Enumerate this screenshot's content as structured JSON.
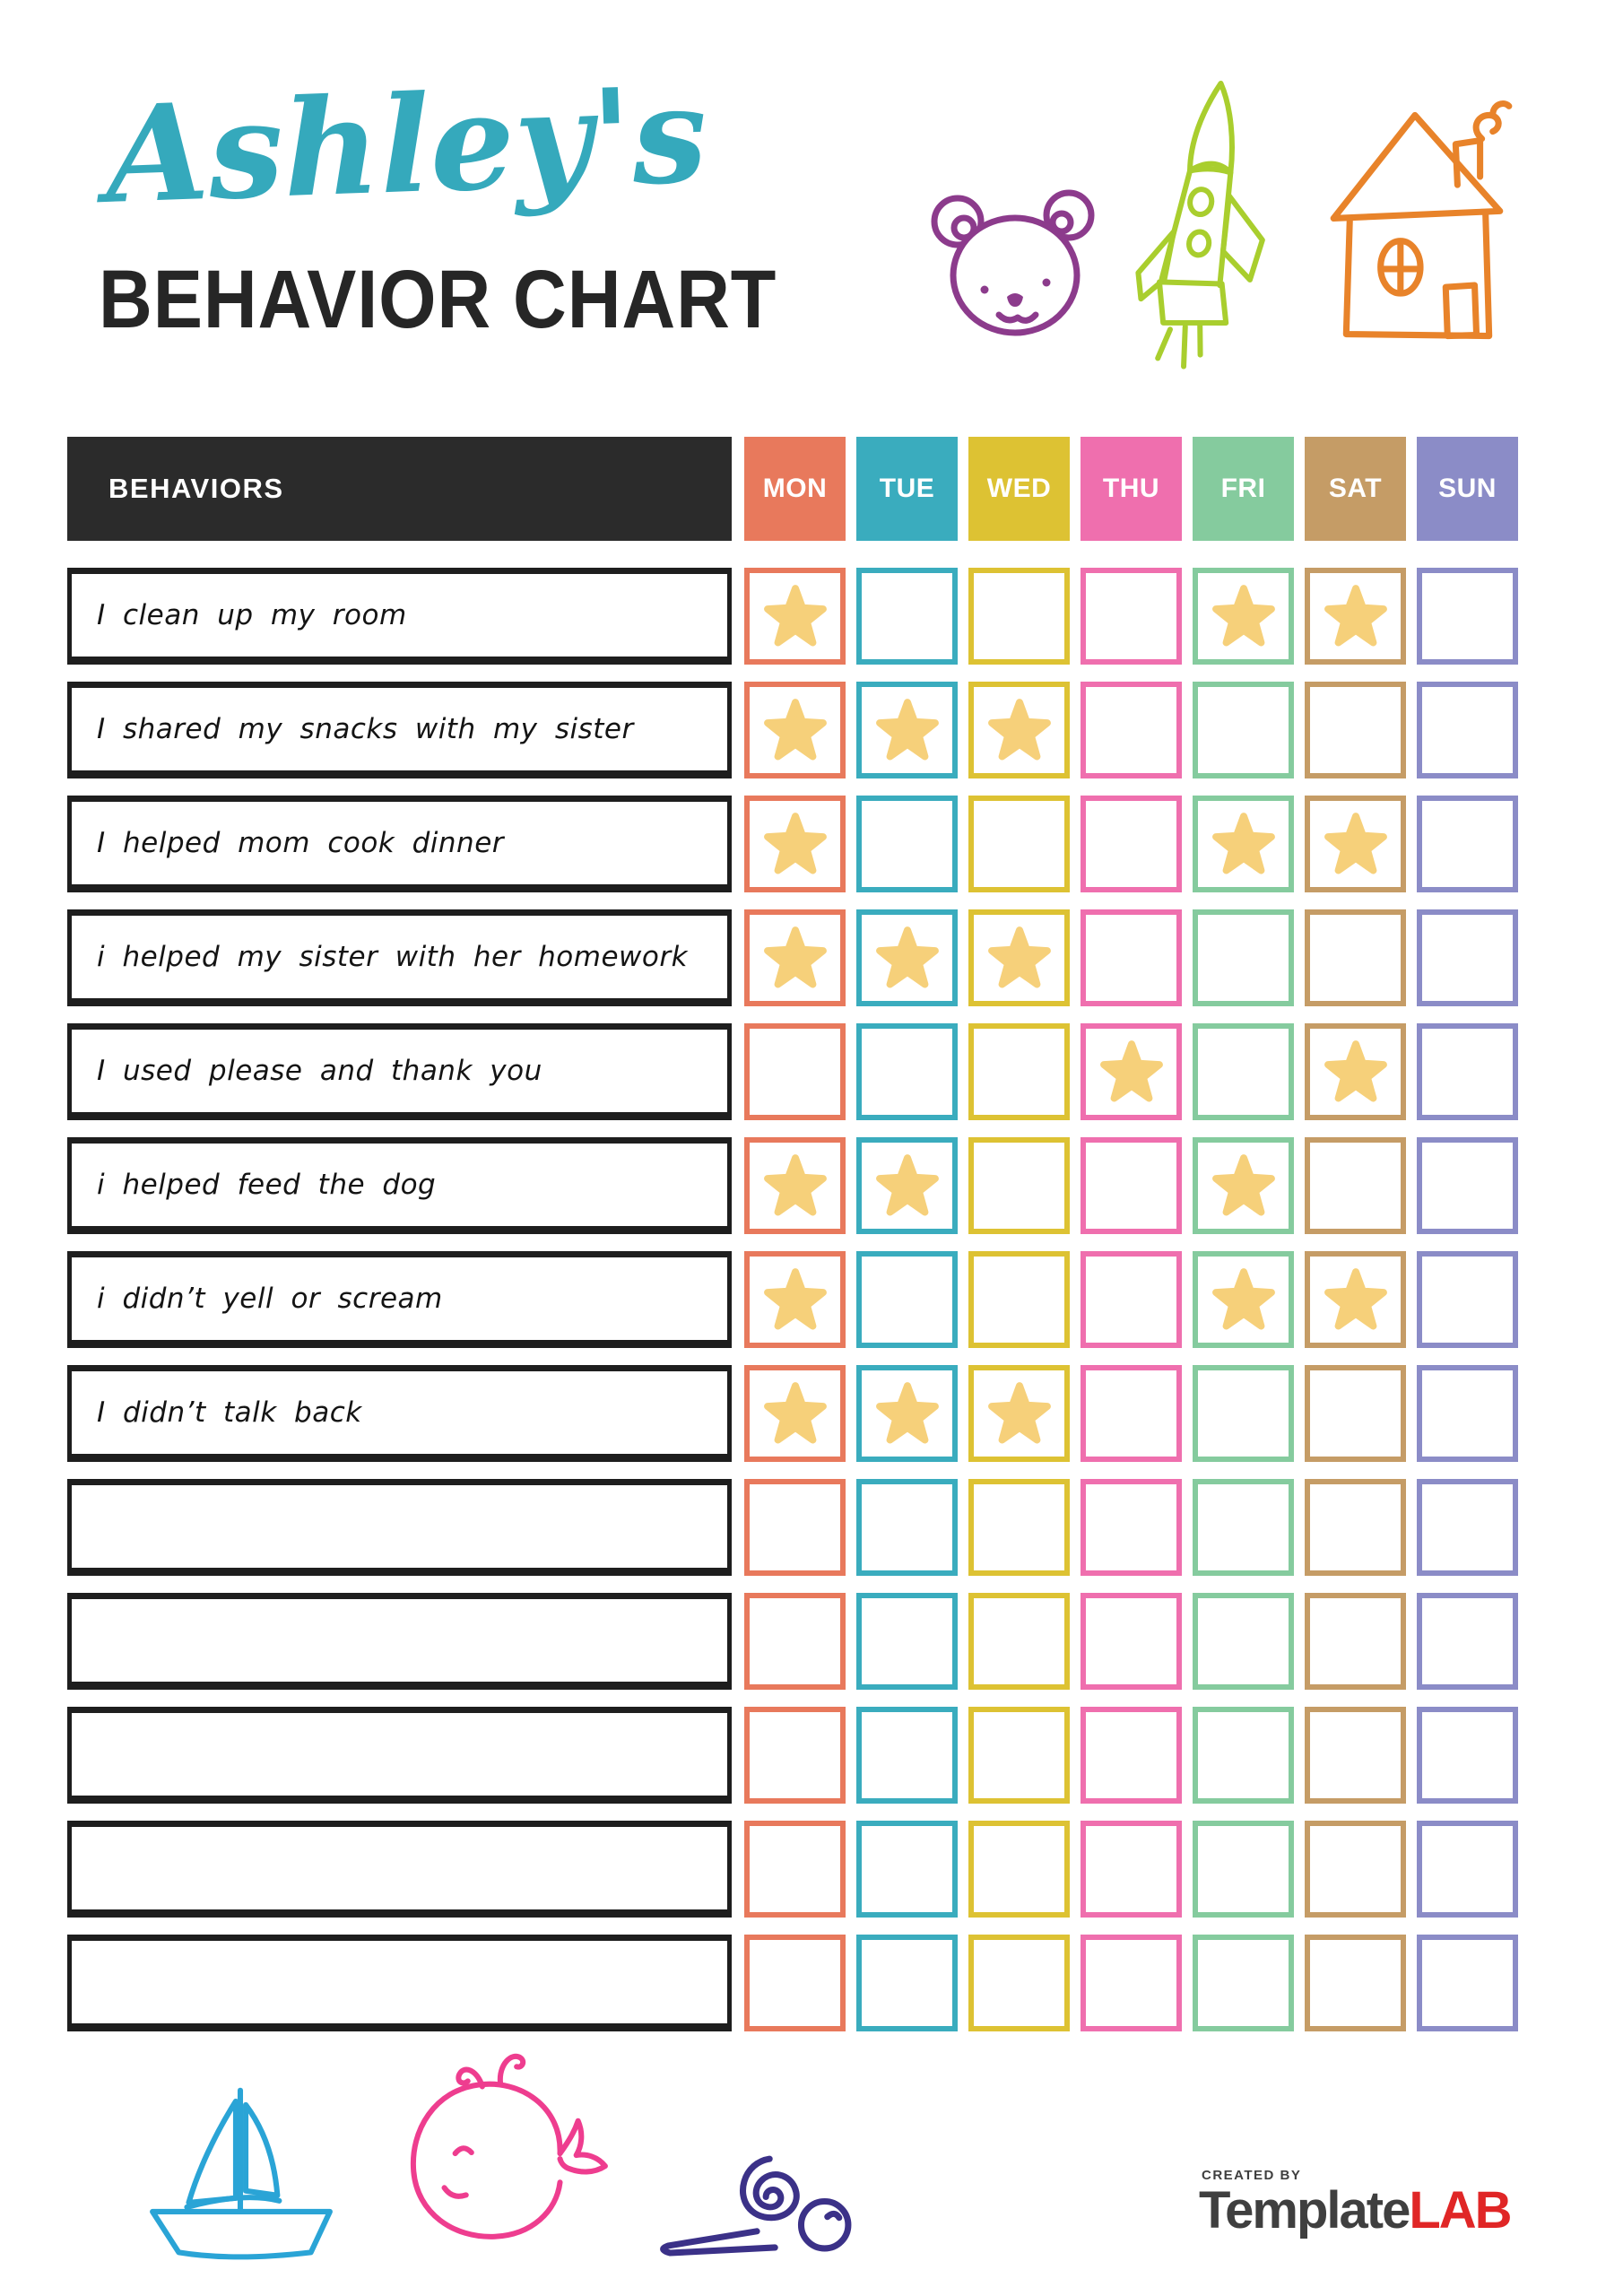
{
  "header": {
    "script_title": "Ashley's",
    "script_color": "#35a9bc",
    "main_title": "BEHAVIOR CHART",
    "main_color": "#262626",
    "doodles": [
      {
        "icon": "bear-doodle-icon",
        "color": "#8c3b8c"
      },
      {
        "icon": "rocket-doodle-icon",
        "color": "#a9ce2e"
      },
      {
        "icon": "house-doodle-icon",
        "color": "#e8832a"
      }
    ]
  },
  "table": {
    "behaviors_header": "BEHAVIORS",
    "header_bg": "#2b2b2b",
    "star_icon": "star-icon",
    "star_color": "#f6d07a",
    "days": [
      {
        "label": "MON",
        "color": "#e8795c"
      },
      {
        "label": "TUE",
        "color": "#3aacbe"
      },
      {
        "label": "WED",
        "color": "#ddc233"
      },
      {
        "label": "THU",
        "color": "#ef6fae"
      },
      {
        "label": "FRI",
        "color": "#85cb9e"
      },
      {
        "label": "SAT",
        "color": "#c59c66"
      },
      {
        "label": "SUN",
        "color": "#8b8cc7"
      }
    ],
    "rows": [
      {
        "label": "I clean up my room",
        "stars": [
          "MON",
          "FRI",
          "SAT"
        ]
      },
      {
        "label": "I shared my snacks with my sister",
        "stars": [
          "MON",
          "TUE",
          "WED"
        ]
      },
      {
        "label": "I helped mom cook dinner",
        "stars": [
          "MON",
          "FRI",
          "SAT"
        ]
      },
      {
        "label": "i helped my sister with her homework",
        "stars": [
          "MON",
          "TUE",
          "WED"
        ]
      },
      {
        "label": "I used please and thank you",
        "stars": [
          "THU",
          "SAT"
        ]
      },
      {
        "label": "i helped feed the dog",
        "stars": [
          "MON",
          "TUE",
          "FRI"
        ]
      },
      {
        "label": "i didn’t yell or scream",
        "stars": [
          "MON",
          "FRI",
          "SAT"
        ]
      },
      {
        "label": "I didn’t talk back",
        "stars": [
          "MON",
          "TUE",
          "WED"
        ]
      },
      {
        "label": "",
        "stars": []
      },
      {
        "label": "",
        "stars": []
      },
      {
        "label": "",
        "stars": []
      },
      {
        "label": "",
        "stars": []
      },
      {
        "label": "",
        "stars": []
      }
    ]
  },
  "footer": {
    "created_by": "CREATED BY",
    "brand_template": "Template",
    "brand_template_color": "#3f3f3f",
    "brand_lab": "LAB",
    "brand_lab_color": "#e02626",
    "doodles": [
      {
        "icon": "sailboat-doodle-icon",
        "color": "#2aa4d6"
      },
      {
        "icon": "whale-doodle-icon",
        "color": "#ee3d8f"
      },
      {
        "icon": "snail-doodle-icon",
        "color": "#3b3188"
      }
    ]
  }
}
